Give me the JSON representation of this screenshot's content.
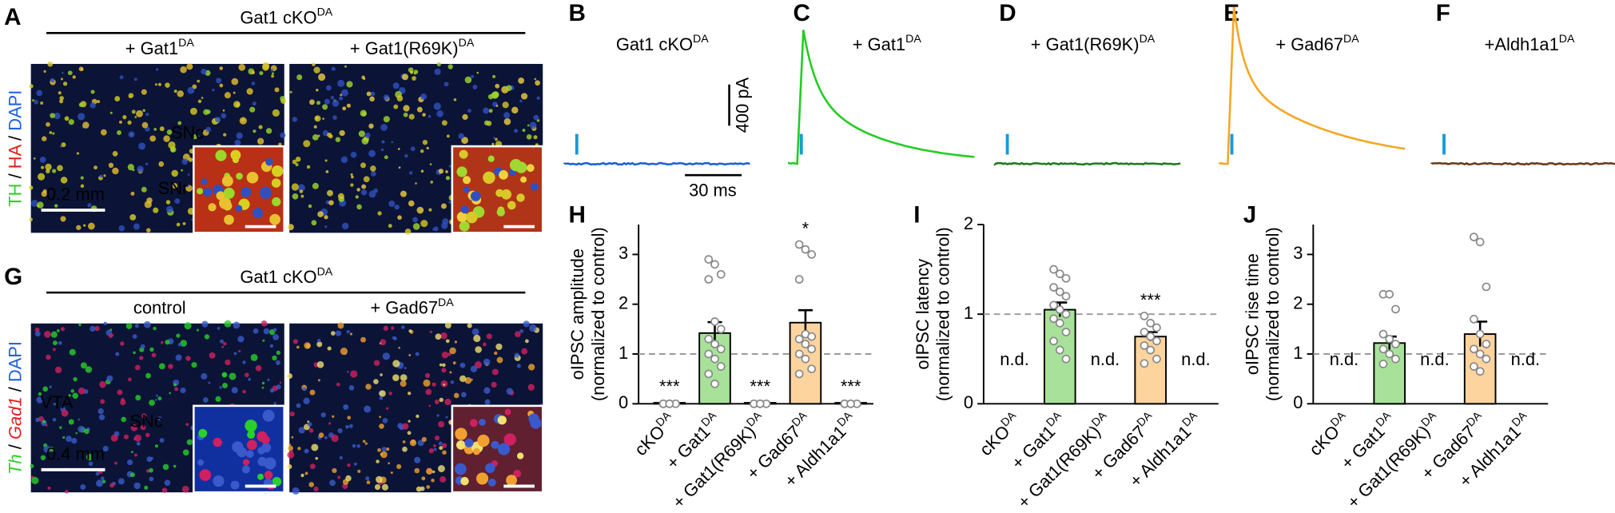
{
  "micrographs": {
    "A": {
      "letter": "A",
      "title": "Gat1 cKO",
      "title_sup": "DA",
      "left": "+ Gat1",
      "left_sup": "DA",
      "right": "+ Gat1(R69K)",
      "right_sup": "DA",
      "stain": [
        "TH",
        "/",
        "HA",
        "/",
        "DAPI"
      ],
      "stain_colors": [
        "#2bd12b",
        "#000000",
        "#e0201e",
        "#000000",
        "#2060e0"
      ],
      "regions": [
        "SNc",
        "SNr"
      ],
      "scale": "0.2 mm"
    },
    "G": {
      "letter": "G",
      "title": "Gat1 cKO",
      "title_sup": "DA",
      "left": "control",
      "right": "+ Gad67",
      "right_sup": "DA",
      "stain": [
        "Th",
        "/",
        "Gad1",
        "/",
        "DAPI"
      ],
      "stain_colors": [
        "#2bd12b",
        "#000000",
        "#e0201e",
        "#000000",
        "#2060e0"
      ],
      "regions": [
        "VTA",
        "SNc"
      ],
      "scale": "0.4 mm"
    }
  },
  "traces": {
    "panels": [
      {
        "letter": "B",
        "label": "Gat1 cKO",
        "sup": "DA",
        "color": "#1a62d6"
      },
      {
        "letter": "C",
        "label": "+ Gat1",
        "sup": "DA",
        "color": "#22cc22"
      },
      {
        "letter": "D",
        "label": "+ Gat1(R69K)",
        "sup": "DA",
        "color": "#1f7a1f"
      },
      {
        "letter": "E",
        "label": "+ Gad67",
        "sup": "DA",
        "color": "#f5a623"
      },
      {
        "letter": "F",
        "label": "+Aldh1a1",
        "sup": "DA",
        "color": "#6b3a1c"
      }
    ],
    "scale_y": "400 pA",
    "scale_x": "30 ms"
  },
  "chart_data": [
    {
      "type": "bar",
      "panel": "H",
      "ylabel": [
        "oIPSC amplitude",
        "(normalized to control)"
      ],
      "categories": [
        "cKO",
        "+ Gat1",
        "+ Gat1(R69K)",
        "+ Gad67",
        "+ Aldh1a1"
      ],
      "category_sups": [
        "DA",
        "DA",
        "DA",
        "DA",
        "DA"
      ],
      "values": [
        0.02,
        1.42,
        0.02,
        1.63,
        0.02
      ],
      "errors": [
        0.01,
        0.22,
        0.01,
        0.25,
        0.01
      ],
      "colors": [
        "#ffffff",
        "#a8e29a",
        "#ffffff",
        "#fdd49e",
        "#ffffff"
      ],
      "points": [
        [
          0,
          0,
          0,
          0,
          0
        ],
        [
          2.9,
          2.8,
          2.6,
          2.5,
          1.65,
          1.5,
          1.3,
          1.2,
          1.1,
          1.0,
          0.9,
          0.75,
          0.6,
          0.4
        ],
        [
          0,
          0,
          0,
          0,
          0
        ],
        [
          3.2,
          3.1,
          3.0,
          2.5,
          1.4,
          1.35,
          1.3,
          1.2,
          1.1,
          1.0,
          0.9,
          0.7,
          0.6
        ],
        [
          0,
          0,
          0,
          0,
          0
        ]
      ],
      "annotations": [
        "***",
        null,
        "***",
        "*",
        "***"
      ],
      "reference_line": 1,
      "ylim": [
        0,
        3.6
      ],
      "yticks": [
        0,
        1,
        2,
        3
      ]
    },
    {
      "type": "bar",
      "panel": "I",
      "ylabel": [
        "oIPSC latency",
        "(normalized to control)"
      ],
      "categories": [
        "cKO",
        "+ Gat1",
        "+ Gat1(R69K)",
        "+ Gad67",
        "+ Aldh1a1"
      ],
      "category_sups": [
        "DA",
        "DA",
        "DA",
        "DA",
        "DA"
      ],
      "values": [
        null,
        1.05,
        null,
        0.75,
        null
      ],
      "errors": [
        null,
        0.08,
        null,
        0.05,
        null
      ],
      "colors": [
        "#ffffff",
        "#a8e29a",
        "#ffffff",
        "#fdd49e",
        "#ffffff"
      ],
      "points": [
        [],
        [
          1.5,
          1.45,
          1.4,
          1.3,
          1.25,
          1.2,
          1.1,
          1.05,
          1.0,
          0.95,
          0.9,
          0.8,
          0.7,
          0.6,
          0.5
        ],
        [],
        [
          0.98,
          0.9,
          0.85,
          0.8,
          0.75,
          0.7,
          0.65,
          0.6,
          0.5,
          0.45
        ],
        []
      ],
      "annotations": [
        "n.d.",
        null,
        "n.d.",
        "***",
        "n.d."
      ],
      "reference_line": 1,
      "ylim": [
        0,
        2
      ],
      "yticks": [
        0,
        1,
        2
      ]
    },
    {
      "type": "bar",
      "panel": "J",
      "ylabel": [
        "oIPSC rise time",
        "(normalized to control)"
      ],
      "categories": [
        "cKO",
        "+ Gat1",
        "+ Gat1(R69K)",
        "+ Gad67",
        "+ Aldh1a1"
      ],
      "category_sups": [
        "DA",
        "DA",
        "DA",
        "DA",
        "DA"
      ],
      "values": [
        null,
        1.22,
        null,
        1.4,
        null
      ],
      "errors": [
        null,
        0.13,
        null,
        0.25,
        null
      ],
      "colors": [
        "#ffffff",
        "#a8e29a",
        "#ffffff",
        "#fdd49e",
        "#ffffff"
      ],
      "points": [
        [],
        [
          2.2,
          2.2,
          1.9,
          1.4,
          1.3,
          1.2,
          1.1,
          1.0,
          0.9,
          0.8
        ],
        [],
        [
          3.35,
          3.25,
          2.35,
          1.7,
          1.4,
          1.2,
          1.1,
          1.0,
          0.9,
          0.75,
          0.65
        ],
        []
      ],
      "annotations": [
        "n.d.",
        null,
        "n.d.",
        null,
        "n.d."
      ],
      "reference_line": 1,
      "ylim": [
        0,
        3.6
      ],
      "yticks": [
        0,
        1,
        2,
        3
      ]
    }
  ]
}
